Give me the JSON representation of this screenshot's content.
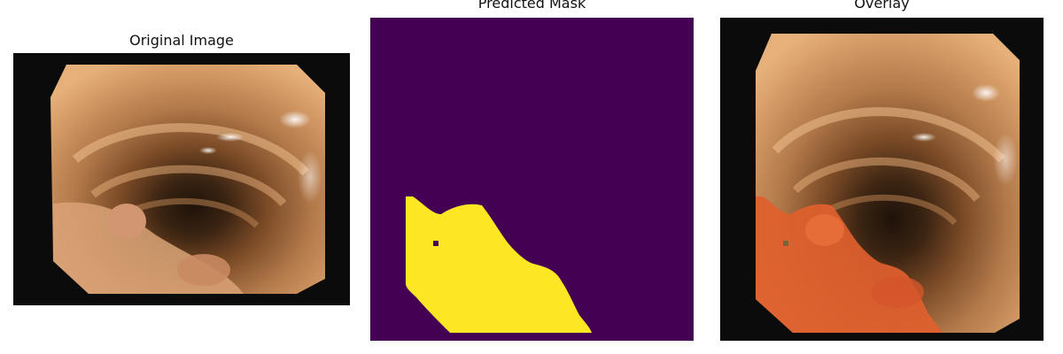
{
  "panels": [
    {
      "title": "Original Image"
    },
    {
      "title": "Predicted Mask"
    },
    {
      "title": "Overlay"
    }
  ],
  "colors": {
    "mask_background": "#440154",
    "mask_foreground": "#fde725",
    "frame_black": "#0b0b0b",
    "overlay_tint": "#ff4a1a"
  }
}
